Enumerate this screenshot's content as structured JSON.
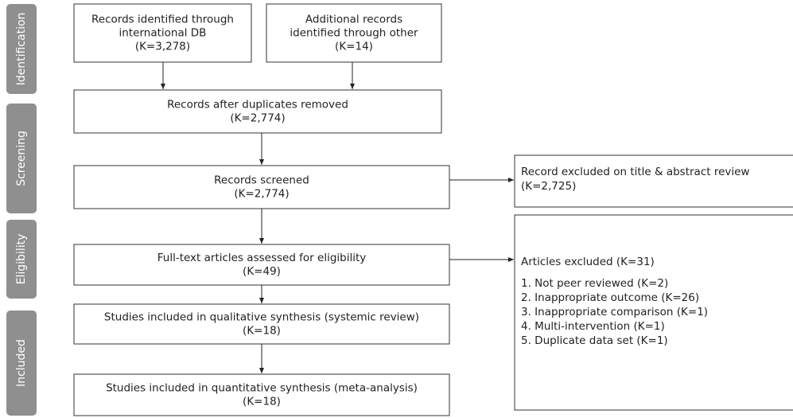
{
  "stages": [
    "Identification",
    "Screening",
    "Eligibility",
    "Included"
  ],
  "boxes": [
    {
      "lines": [
        "Records identified through",
        "international DB",
        "(K=3,278)"
      ]
    },
    {
      "lines": [
        "Additional records",
        "identified through other",
        "(K=14)"
      ]
    },
    {
      "lines": [
        "Records after duplicates removed",
        "(K=2,774)"
      ]
    },
    {
      "lines": [
        "Records screened",
        "(K=2,774)"
      ]
    },
    {
      "lines": [
        "Full-text articles assessed for eligibility",
        "(K=49)"
      ]
    },
    {
      "lines": [
        "Studies included in qualitative synthesis (systemic review)",
        "(K=18)"
      ]
    },
    {
      "lines": [
        "Studies included in quantitative synthesis (meta-analysis)",
        "(K=18)"
      ]
    }
  ],
  "excluded": [
    {
      "lines": [
        "Record excluded on title & abstract review",
        "(K=2,725)"
      ]
    },
    {
      "lines": [
        "Articles excluded (K=31)",
        "1. Not peer reviewed (K=2)",
        "2. Inappropriate outcome (K=26)",
        "3. Inappropriate comparison (K=1)",
        "4. Multi-intervention (K=1)",
        "5. Duplicate data set (K=1)"
      ]
    }
  ]
}
